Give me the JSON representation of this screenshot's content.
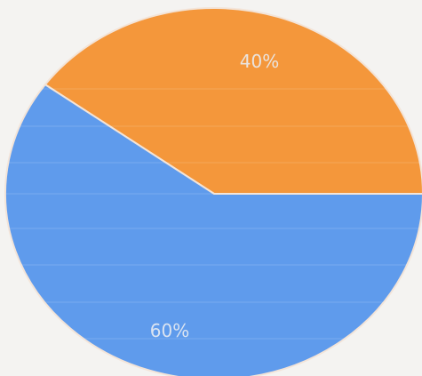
{
  "chart_data": {
    "type": "pie",
    "slices": [
      {
        "label": "40%",
        "value": 40,
        "color": "#f4973b"
      },
      {
        "label": "60%",
        "value": 60,
        "color": "#5f9bec"
      }
    ]
  },
  "background": "#f4f3f1"
}
